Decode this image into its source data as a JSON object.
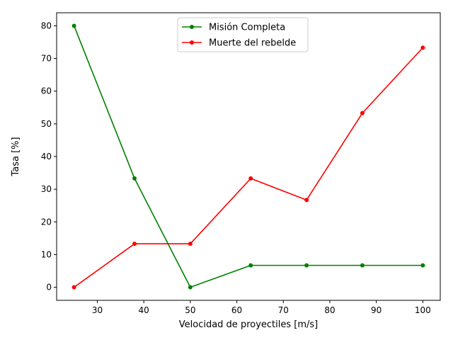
{
  "chart_data": {
    "type": "line",
    "xlabel": "Velocidad de proyectiles [m/s]",
    "ylabel": "Tasa [%]",
    "xlim": [
      21.25,
      103.75
    ],
    "ylim": [
      -4,
      84
    ],
    "xticks": [
      30,
      40,
      50,
      60,
      70,
      80,
      90,
      100
    ],
    "yticks": [
      0,
      10,
      20,
      30,
      40,
      50,
      60,
      70,
      80
    ],
    "grid": false,
    "legend_position": "top-center",
    "series": [
      {
        "name": "Misión Completa",
        "color": "#008000",
        "marker": "circle",
        "x": [
          25,
          38,
          50,
          63,
          75,
          87,
          100
        ],
        "y": [
          80,
          33.3,
          0,
          6.7,
          6.7,
          6.7,
          6.7
        ]
      },
      {
        "name": "Muerte del rebelde",
        "color": "#ff0000",
        "marker": "circle",
        "x": [
          25,
          38,
          50,
          63,
          75,
          87,
          100
        ],
        "y": [
          0,
          13.3,
          13.3,
          33.3,
          26.7,
          53.3,
          73.3
        ]
      }
    ]
  }
}
